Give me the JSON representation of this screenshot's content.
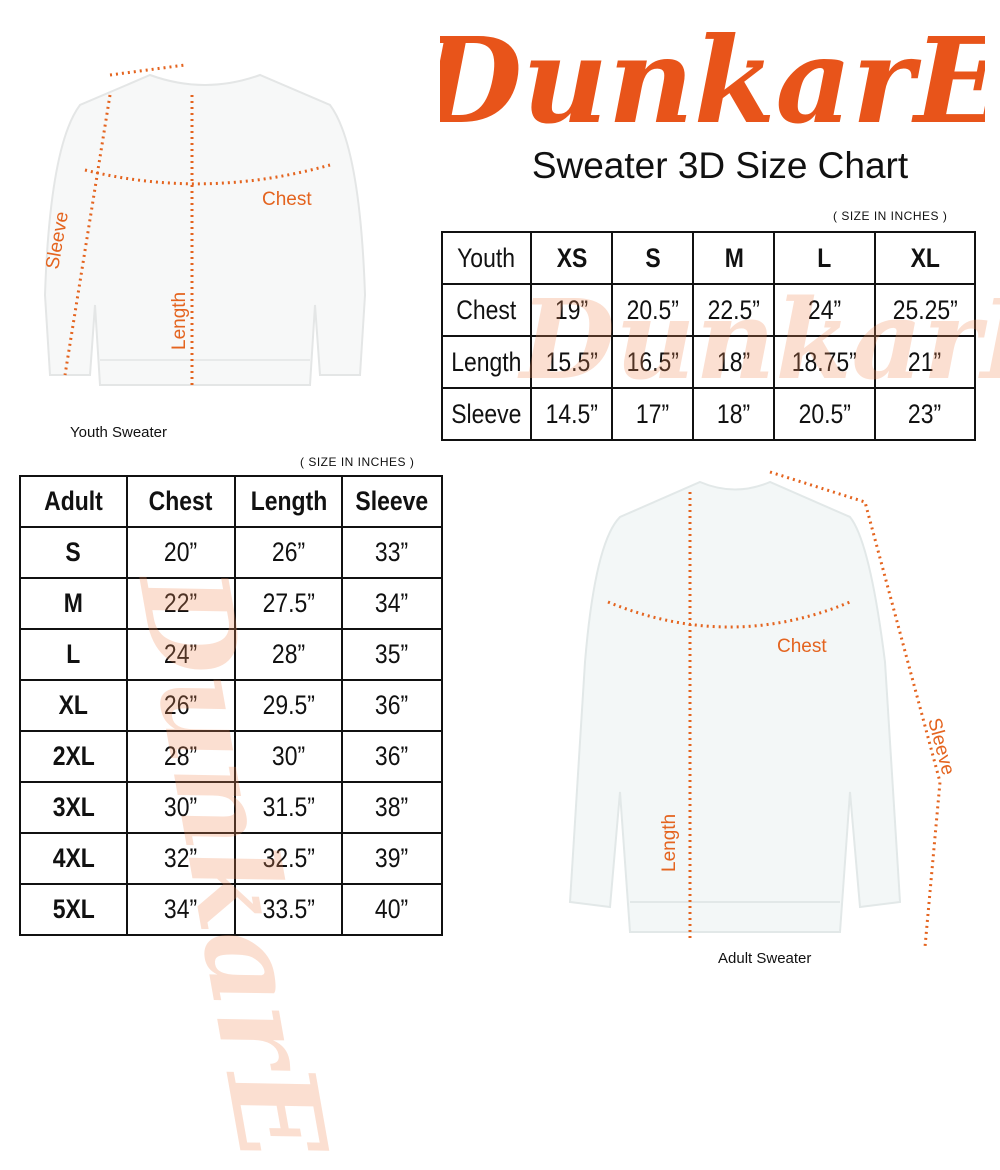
{
  "brand": {
    "logo_text": "DunkarE",
    "color": "#e8541a"
  },
  "title": "Sweater 3D Size Chart",
  "youth": {
    "unit_note": "( SIZE IN INCHES )",
    "caption": "Youth Sweater",
    "diagram_labels": {
      "chest": "Chest",
      "length": "Length",
      "sleeve": "Sleeve"
    },
    "header": [
      "Youth",
      "XS",
      "S",
      "M",
      "L",
      "XL"
    ],
    "rows": [
      [
        "Chest",
        "19”",
        "20.5”",
        "22.5”",
        "24”",
        "25.25”"
      ],
      [
        "Length",
        "15.5”",
        "16.5”",
        "18”",
        "18.75”",
        "21”"
      ],
      [
        "Sleeve",
        "14.5”",
        "17”",
        "18”",
        "20.5”",
        "23”"
      ]
    ]
  },
  "adult": {
    "unit_note": "( SIZE IN INCHES )",
    "caption": "Adult Sweater",
    "diagram_labels": {
      "chest": "Chest",
      "length": "Length",
      "sleeve": "Sleeve"
    },
    "header": [
      "Adult",
      "Chest",
      "Length",
      "Sleeve"
    ],
    "rows": [
      [
        "S",
        "20”",
        "26”",
        "33”"
      ],
      [
        "M",
        "22”",
        "27.5”",
        "34”"
      ],
      [
        "L",
        "24”",
        "28”",
        "35”"
      ],
      [
        "XL",
        "26”",
        "29.5”",
        "36”"
      ],
      [
        "2XL",
        "28”",
        "30”",
        "36”"
      ],
      [
        "3XL",
        "30”",
        "31.5”",
        "38”"
      ],
      [
        "4XL",
        "32”",
        "32.5”",
        "39”"
      ],
      [
        "5XL",
        "34”",
        "33.5”",
        "40”"
      ]
    ]
  }
}
